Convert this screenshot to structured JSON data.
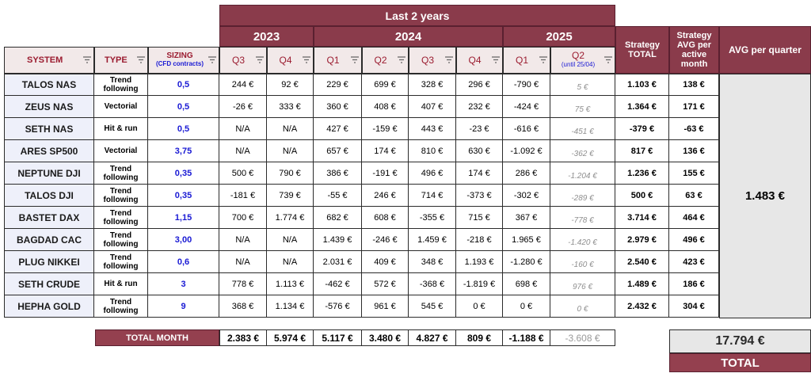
{
  "header": {
    "last_years": "Last 2 years",
    "years": [
      "2023",
      "2024",
      "2025"
    ],
    "strategy_total": "Strategy TOTAL",
    "strategy_avg": "Strategy AVG per active month",
    "avg_quarter": "AVG per quarter"
  },
  "columns": {
    "system": "SYSTEM",
    "type": "TYPE",
    "sizing": "SIZING",
    "sizing_sub": "(CFD contracts)",
    "quarters": [
      "Q3",
      "Q4",
      "Q1",
      "Q2",
      "Q3",
      "Q4",
      "Q1",
      "Q2"
    ],
    "q2_sub": "(until 25/04)"
  },
  "rows": [
    {
      "system": "TALOS NAS",
      "type": "Trend following",
      "sizing": "0,5",
      "values": [
        "244 €",
        "92 €",
        "229 €",
        "699 €",
        "328 €",
        "296 €",
        "-790 €",
        "5 €"
      ],
      "total": "1.103 €",
      "avg": "138 €"
    },
    {
      "system": "ZEUS NAS",
      "type": "Vectorial",
      "sizing": "0,5",
      "values": [
        "-26 €",
        "333 €",
        "360 €",
        "408 €",
        "407 €",
        "232 €",
        "-424 €",
        "75 €"
      ],
      "total": "1.364 €",
      "avg": "171 €"
    },
    {
      "system": "SETH NAS",
      "type": "Hit & run",
      "sizing": "0,5",
      "values": [
        "N/A",
        "N/A",
        "427 €",
        "-159 €",
        "443 €",
        "-23 €",
        "-616 €",
        "-451 €"
      ],
      "total": "-379 €",
      "avg": "-63 €"
    },
    {
      "system": "ARES SP500",
      "type": "Vectorial",
      "sizing": "3,75",
      "values": [
        "N/A",
        "N/A",
        "657 €",
        "174 €",
        "810 €",
        "630 €",
        "-1.092 €",
        "-362 €"
      ],
      "total": "817 €",
      "avg": "136 €"
    },
    {
      "system": "NEPTUNE DJI",
      "type": "Trend following",
      "sizing": "0,35",
      "values": [
        "500 €",
        "790 €",
        "386 €",
        "-191 €",
        "496 €",
        "174 €",
        "286 €",
        "-1.204 €"
      ],
      "total": "1.236 €",
      "avg": "155 €"
    },
    {
      "system": "TALOS DJI",
      "type": "Trend following",
      "sizing": "0,35",
      "values": [
        "-181 €",
        "739 €",
        "-55 €",
        "246 €",
        "714 €",
        "-373 €",
        "-302 €",
        "-289 €"
      ],
      "total": "500 €",
      "avg": "63 €"
    },
    {
      "system": "BASTET DAX",
      "type": "Trend following",
      "sizing": "1,15",
      "values": [
        "700 €",
        "1.774 €",
        "682 €",
        "608 €",
        "-355 €",
        "715 €",
        "367 €",
        "-778 €"
      ],
      "total": "3.714 €",
      "avg": "464 €"
    },
    {
      "system": "BAGDAD CAC",
      "type": "Trend following",
      "sizing": "3,00",
      "values": [
        "N/A",
        "N/A",
        "1.439 €",
        "-246 €",
        "1.459 €",
        "-218 €",
        "1.965 €",
        "-1.420 €"
      ],
      "total": "2.979 €",
      "avg": "496 €"
    },
    {
      "system": "PLUG NIKKEI",
      "type": "Trend following",
      "sizing": "0,6",
      "values": [
        "N/A",
        "N/A",
        "2.031 €",
        "409 €",
        "348 €",
        "1.193 €",
        "-1.280 €",
        "-160 €"
      ],
      "total": "2.540 €",
      "avg": "423 €"
    },
    {
      "system": "SETH CRUDE",
      "type": "Hit & run",
      "sizing": "3",
      "values": [
        "778 €",
        "1.113 €",
        "-462 €",
        "572 €",
        "-368 €",
        "-1.819 €",
        "698 €",
        "976 €"
      ],
      "total": "1.489 €",
      "avg": "186 €"
    },
    {
      "system": "HEPHA GOLD",
      "type": "Trend following",
      "sizing": "9",
      "values": [
        "368 €",
        "1.134 €",
        "-576 €",
        "961 €",
        "545 €",
        "0 €",
        "0 €",
        "0 €"
      ],
      "total": "2.432 €",
      "avg": "304 €"
    }
  ],
  "avg_quarter_value": "1.483 €",
  "total_month": {
    "label": "TOTAL MONTH",
    "values": [
      "2.383 €",
      "5.974 €",
      "5.117 €",
      "3.480 €",
      "4.827 €",
      "809 €",
      "-1.188 €",
      "-3.608 €"
    ]
  },
  "grand_total": {
    "value": "17.794 €",
    "label": "TOTAL"
  },
  "colors": {
    "accent": "#8a3b4b",
    "system_bg": "#eef0fa",
    "header_bg": "#f2e9e9",
    "sizing": "#1919d4"
  }
}
